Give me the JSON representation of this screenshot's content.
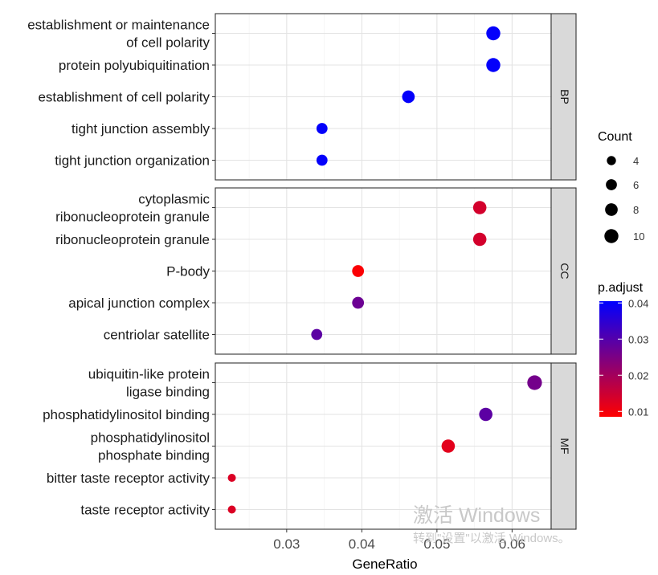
{
  "chart_data": {
    "type": "scatter",
    "xlabel": "GeneRatio",
    "ylabel": "",
    "xlim": [
      0.0205,
      0.0652
    ],
    "x_ticks": [
      0.03,
      0.04,
      0.05,
      0.06
    ],
    "x_tick_labels": [
      "0.03",
      "0.04",
      "0.05",
      "0.06"
    ],
    "grid": true,
    "size_legend": {
      "title": "Count",
      "values": [
        4,
        6,
        8,
        10
      ],
      "labels": [
        "4",
        "6",
        "8",
        "10"
      ]
    },
    "color_legend": {
      "title": "p.adjust",
      "range": [
        0.0085,
        0.0405
      ],
      "ticks": [
        0.01,
        0.02,
        0.03,
        0.04
      ],
      "tick_labels": [
        "0.01",
        "0.02",
        "0.03",
        "0.04"
      ],
      "low_color": "#ff0000",
      "high_color": "#0000ff"
    },
    "facets": [
      {
        "label": "BP",
        "terms": [
          {
            "lines": [
              "establishment or maintenance",
              "of cell polarity"
            ],
            "gene_ratio": 0.0575,
            "count": 10,
            "p_adjust": 0.04
          },
          {
            "lines": [
              "protein polyubiquitination"
            ],
            "gene_ratio": 0.0575,
            "count": 10,
            "p_adjust": 0.04
          },
          {
            "lines": [
              "establishment of cell polarity"
            ],
            "gene_ratio": 0.0462,
            "count": 8,
            "p_adjust": 0.04
          },
          {
            "lines": [
              "tight junction assembly"
            ],
            "gene_ratio": 0.0347,
            "count": 6,
            "p_adjust": 0.04
          },
          {
            "lines": [
              "tight junction organization"
            ],
            "gene_ratio": 0.0347,
            "count": 6,
            "p_adjust": 0.04
          }
        ]
      },
      {
        "label": "CC",
        "terms": [
          {
            "lines": [
              "cytoplasmic",
              "ribonucleoprotein granule"
            ],
            "gene_ratio": 0.0557,
            "count": 9,
            "p_adjust": 0.014
          },
          {
            "lines": [
              "ribonucleoprotein granule"
            ],
            "gene_ratio": 0.0557,
            "count": 9,
            "p_adjust": 0.014
          },
          {
            "lines": [
              "P-body"
            ],
            "gene_ratio": 0.0395,
            "count": 7,
            "p_adjust": 0.009
          },
          {
            "lines": [
              "apical junction complex"
            ],
            "gene_ratio": 0.0395,
            "count": 7,
            "p_adjust": 0.027
          },
          {
            "lines": [
              "centriolar satellite"
            ],
            "gene_ratio": 0.034,
            "count": 6,
            "p_adjust": 0.029
          }
        ]
      },
      {
        "label": "MF",
        "terms": [
          {
            "lines": [
              "ubiquitin-like protein",
              "ligase binding"
            ],
            "gene_ratio": 0.063,
            "count": 11,
            "p_adjust": 0.026
          },
          {
            "lines": [
              "phosphatidylinositol binding"
            ],
            "gene_ratio": 0.0565,
            "count": 9,
            "p_adjust": 0.029
          },
          {
            "lines": [
              "phosphatidylinositol",
              "phosphate binding"
            ],
            "gene_ratio": 0.0515,
            "count": 9,
            "p_adjust": 0.012
          },
          {
            "lines": [
              "bitter taste receptor activity"
            ],
            "gene_ratio": 0.0227,
            "count": 3,
            "p_adjust": 0.013
          },
          {
            "lines": [
              "taste receptor activity"
            ],
            "gene_ratio": 0.0227,
            "count": 3,
            "p_adjust": 0.013
          }
        ]
      }
    ]
  },
  "watermark": {
    "line1": "激活 Windows",
    "line2": "转到\"设置\"以激活 Windows。"
  }
}
